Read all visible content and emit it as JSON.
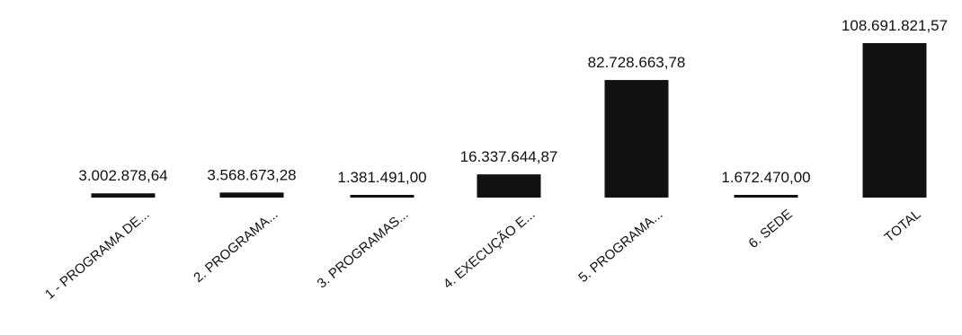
{
  "chart_data": {
    "type": "bar",
    "categories": [
      "1 - PROGRAMA DE...",
      "2. PROGRAMA...",
      "3. PROGRAMAS...",
      "4. EXECUÇÃO E...",
      "5. PROGRAMA...",
      "6. SEDE",
      "TOTAL"
    ],
    "values": [
      3002878.64,
      3568673.28,
      1381491.0,
      16337644.87,
      82728663.78,
      1672470.0,
      108691821.57
    ],
    "value_labels": [
      "3.002.878,64",
      "3.568.673,28",
      "1.381.491,00",
      "16.337.644,87",
      "82.728.663,78",
      "1.672.470,00",
      "108.691.821,57"
    ],
    "ylim": [
      0,
      108691821.57
    ],
    "grid": false,
    "bar_color": "#111111",
    "title": "",
    "xlabel": "",
    "ylabel": ""
  }
}
